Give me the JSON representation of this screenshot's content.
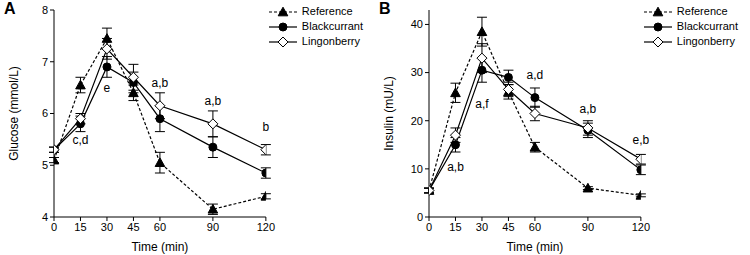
{
  "chart_data": [
    {
      "type": "line",
      "title": "A",
      "x_label": "Time (min)",
      "y_label": "Glucose (mmol/L)",
      "x": [
        0,
        15,
        30,
        45,
        60,
        90,
        120
      ],
      "xlim": [
        0,
        120
      ],
      "xticks": [
        0,
        15,
        30,
        45,
        60,
        90,
        120
      ],
      "ylim": [
        4,
        8
      ],
      "yticks": [
        4,
        5,
        6,
        7,
        8
      ],
      "legend": "upper right",
      "series": [
        {
          "name": "Reference",
          "color": "#000000",
          "marker": "triangle",
          "line_style": "dashed",
          "values": [
            5.1,
            6.55,
            7.45,
            6.4,
            5.05,
            4.15,
            4.4
          ],
          "errors": [
            0.05,
            0.15,
            0.2,
            0.15,
            0.2,
            0.1,
            0.05
          ]
        },
        {
          "name": "Blackcurrant",
          "color": "#000000",
          "marker": "circle",
          "line_style": "solid",
          "values": [
            5.3,
            5.8,
            6.9,
            6.6,
            5.9,
            5.35,
            4.85
          ],
          "errors": [
            0.05,
            0.15,
            0.2,
            0.2,
            0.25,
            0.2,
            0.1
          ]
        },
        {
          "name": "Lingonberry",
          "color": "#000000",
          "marker": "diamond-open",
          "line_style": "solid",
          "values": [
            5.3,
            5.9,
            7.25,
            6.7,
            6.15,
            5.8,
            5.3
          ],
          "errors": [
            0.05,
            0.1,
            0.2,
            0.25,
            0.25,
            0.25,
            0.1
          ]
        }
      ],
      "annotations": [
        {
          "text": "c,d",
          "x": 15,
          "y": 5.5
        },
        {
          "text": "e",
          "x": 30,
          "y": 6.5
        },
        {
          "text": "a,b",
          "x": 60,
          "y": 6.6
        },
        {
          "text": "a,b",
          "x": 90,
          "y": 6.25
        },
        {
          "text": "b",
          "x": 120,
          "y": 5.75
        }
      ]
    },
    {
      "type": "line",
      "title": "B",
      "x_label": "Time (min)",
      "y_label": "Insulin (mU/L)",
      "x": [
        0,
        15,
        30,
        45,
        60,
        90,
        120
      ],
      "xlim": [
        0,
        120
      ],
      "xticks": [
        0,
        15,
        30,
        45,
        60,
        90,
        120
      ],
      "ylim": [
        0,
        43
      ],
      "yticks": [
        0,
        10,
        20,
        30,
        40
      ],
      "legend": "upper right",
      "series": [
        {
          "name": "Reference",
          "color": "#000000",
          "marker": "triangle",
          "line_style": "dashed",
          "values": [
            5.5,
            25.8,
            38.5,
            26,
            14.5,
            6,
            4.5
          ],
          "errors": [
            0.5,
            2,
            3,
            1.5,
            1,
            0.3,
            0.3
          ]
        },
        {
          "name": "Blackcurrant",
          "color": "#000000",
          "marker": "circle",
          "line_style": "solid",
          "values": [
            5.5,
            15,
            30.5,
            29,
            24.8,
            18,
            9.8
          ],
          "errors": [
            0.5,
            1.5,
            2.5,
            1.5,
            2,
            1.5,
            1
          ]
        },
        {
          "name": "Lingonberry",
          "color": "#000000",
          "marker": "diamond-open",
          "line_style": "solid",
          "values": [
            5.5,
            17,
            33,
            26.5,
            21.5,
            18.5,
            12
          ],
          "errors": [
            0.5,
            1.5,
            3,
            1.5,
            1.5,
            1.5,
            1
          ]
        }
      ],
      "annotations": [
        {
          "text": "a,b",
          "x": 15,
          "y": 10.5
        },
        {
          "text": "a,f",
          "x": 30,
          "y": 23.5
        },
        {
          "text": "a,d",
          "x": 60,
          "y": 29.5
        },
        {
          "text": "a,b",
          "x": 90,
          "y": 22.5
        },
        {
          "text": "e,b",
          "x": 120,
          "y": 16
        }
      ]
    }
  ]
}
